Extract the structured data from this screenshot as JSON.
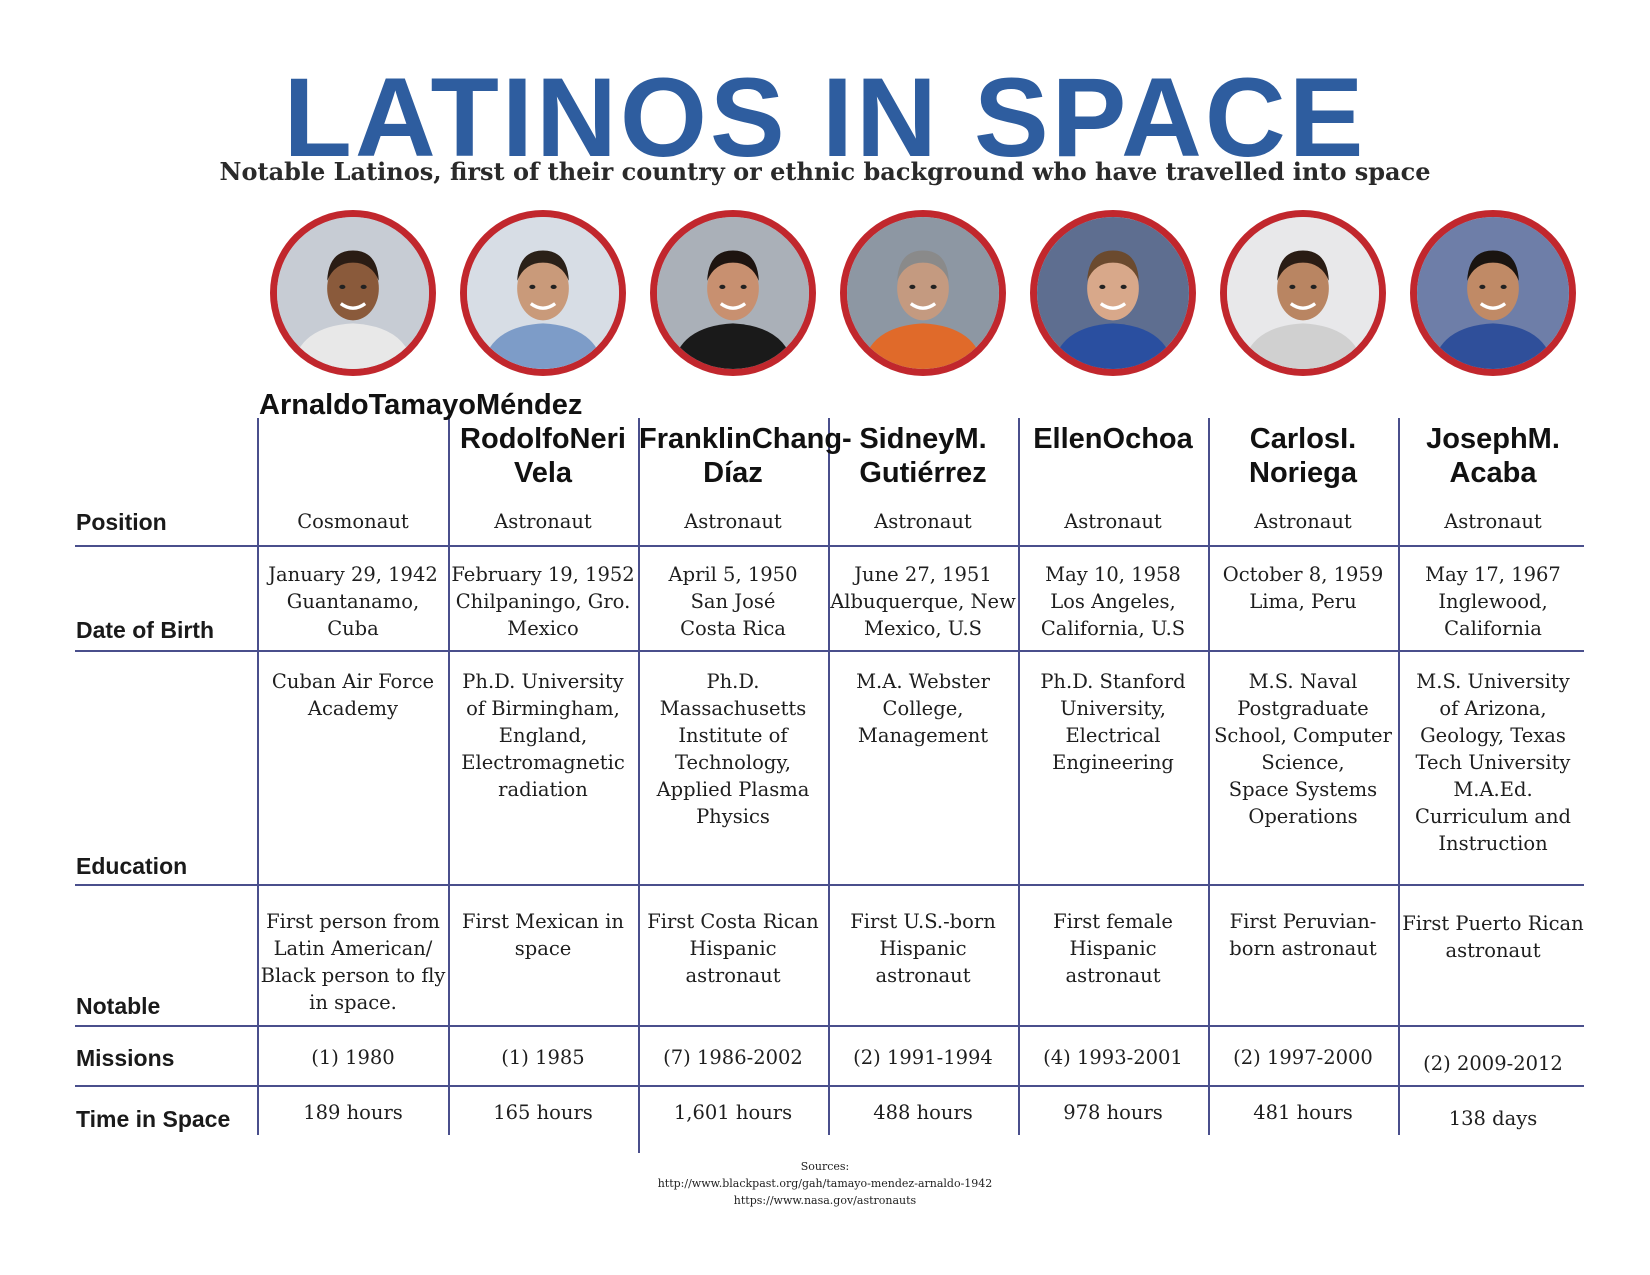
{
  "title": "LATINOS IN SPACE",
  "subtitle": "Notable Latinos, first of their country or ethnic background who have travelled into space",
  "row_labels": {
    "position": "Position",
    "dob": "Date of Birth",
    "education": "Education",
    "notable": "Notable",
    "missions": "Missions",
    "time": "Time in Space"
  },
  "colors": {
    "title": "#2e5d9f",
    "portrait_ring": "#c1272d",
    "grid": "#4a4f8c"
  },
  "astronauts": [
    {
      "name": [
        "Arnaldo",
        "Tamayo",
        "Méndez"
      ],
      "position": "Cosmonaut",
      "dob": [
        "January 29, 1942",
        "Guantanamo,",
        "Cuba"
      ],
      "education": [
        "Cuban Air Force",
        "Academy"
      ],
      "notable": [
        "First person from",
        "Latin American/",
        "Black person to fly",
        "in space."
      ],
      "missions": "(1) 1980",
      "time": "189 hours",
      "portrait_icon": "cosmonaut-portrait-icon"
    },
    {
      "name": [
        "Rodolfo",
        "Neri Vela"
      ],
      "position": "Astronaut",
      "dob": [
        "February 19, 1952",
        "Chilpaningo, Gro.",
        "Mexico"
      ],
      "education": [
        "Ph.D. University",
        "of Birmingham,",
        "England,",
        "Electromagnetic",
        "radiation"
      ],
      "notable": [
        "First Mexican in",
        "space"
      ],
      "missions": "(1) 1985",
      "time": "165 hours",
      "portrait_icon": "astronaut-portrait-icon"
    },
    {
      "name": [
        "Franklin",
        "Chang-Díaz"
      ],
      "position": "Astronaut",
      "dob": [
        "April 5, 1950",
        "San José",
        "Costa Rica"
      ],
      "education": [
        "Ph.D.",
        "Massachusetts",
        "Institute of",
        "Technology,",
        "Applied Plasma",
        "Physics"
      ],
      "notable": [
        "First Costa Rican",
        "Hispanic astronaut"
      ],
      "missions": "(7) 1986-2002",
      "time": "1,601 hours",
      "portrait_icon": "astronaut-portrait-icon"
    },
    {
      "name": [
        "Sidney",
        "M. Gutiérrez"
      ],
      "position": "Astronaut",
      "dob": [
        "June 27, 1951",
        "Albuquerque, New",
        "Mexico, U.S"
      ],
      "education": [
        "M.A. Webster",
        "College,",
        "Management"
      ],
      "notable": [
        "First U.S.-born",
        "Hispanic astronaut"
      ],
      "missions": "(2) 1991-1994",
      "time": "488 hours",
      "portrait_icon": "astronaut-portrait-icon"
    },
    {
      "name": [
        "Ellen",
        "Ochoa"
      ],
      "position": "Astronaut",
      "dob": [
        "May 10, 1958",
        "Los Angeles,",
        "California, U.S"
      ],
      "education": [
        "Ph.D. Stanford",
        "University,",
        "Electrical",
        "Engineering"
      ],
      "notable": [
        "First female",
        "Hispanic astronaut"
      ],
      "missions": "(4) 1993-2001",
      "time": "978 hours",
      "portrait_icon": "astronaut-portrait-icon"
    },
    {
      "name": [
        "Carlos",
        "I. Noriega"
      ],
      "position": "Astronaut",
      "dob": [
        "October 8, 1959",
        "Lima, Peru"
      ],
      "education": [
        "M.S. Naval",
        "Postgraduate",
        "School, Computer",
        "Science,",
        "Space Systems",
        "Operations"
      ],
      "notable": [
        "First Peruvian-",
        "born astronaut"
      ],
      "missions": "(2) 1997-2000",
      "time": "481 hours",
      "portrait_icon": "astronaut-portrait-icon"
    },
    {
      "name": [
        "Joseph",
        "M. Acaba"
      ],
      "position": "Astronaut",
      "dob": [
        "May 17, 1967",
        "Inglewood,",
        "California"
      ],
      "education": [
        "M.S. University",
        "of Arizona,",
        "Geology, Texas",
        "Tech University",
        "M.A.Ed.",
        "Curriculum and",
        "Instruction"
      ],
      "notable": [
        "First Puerto Rican",
        "astronaut"
      ],
      "missions": "(2) 2009-2012",
      "time": "138 days",
      "portrait_icon": "astronaut-portrait-icon"
    }
  ],
  "sources": {
    "label": "Sources:",
    "links": [
      "http://www.blackpast.org/gah/tamayo-mendez-arnaldo-1942",
      "https://www.nasa.gov/astronauts"
    ]
  }
}
